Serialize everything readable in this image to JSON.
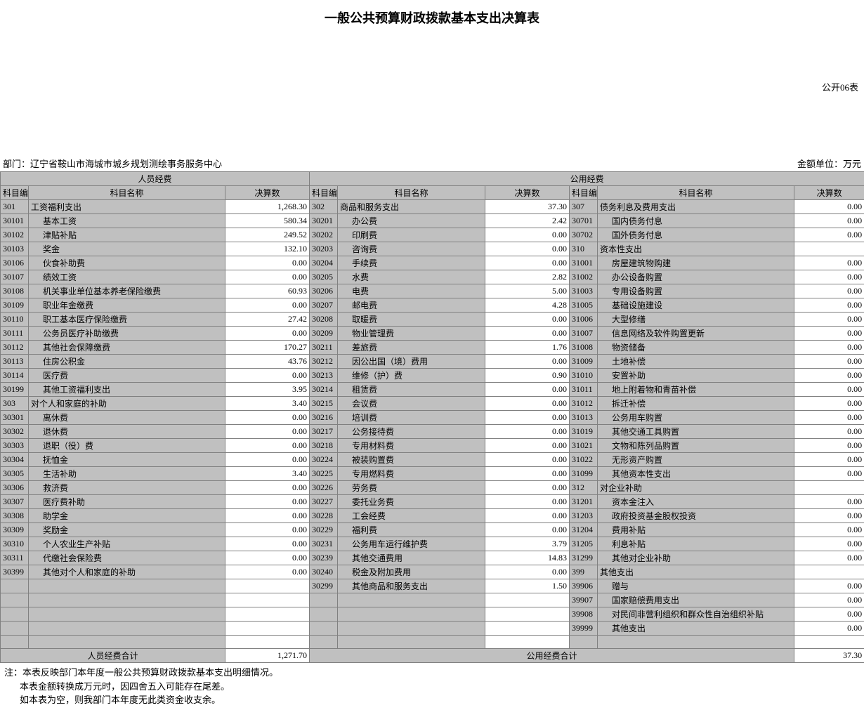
{
  "title": "一般公共预算财政拨款基本支出决算表",
  "pub_label": "公开06表",
  "dept_label": "部门：辽宁省鞍山市海城市城乡规划测绘事务服务中心",
  "unit_label": "金额单位：万元",
  "section_personnel": "人员经费",
  "section_public": "公用经费",
  "col_code": "科目编码",
  "col_name": "科目名称",
  "col_amount": "决算数",
  "total_personnel_label": "人员经费合计",
  "total_personnel_value": "1,271.70",
  "total_public_label": "公用经费合计",
  "total_public_value": "37.30",
  "notes": [
    "注：本表反映部门本年度一般公共预算财政拨款基本支出明细情况。",
    "本表金额转换成万元时，因四舍五入可能存在尾差。",
    "如本表为空，则我部门本年度无此类资金收支余。"
  ],
  "colA": [
    {
      "code": "301",
      "name": "工资福利支出",
      "amt": "1,268.30",
      "lvl": 0
    },
    {
      "code": "30101",
      "name": "基本工资",
      "amt": "580.34",
      "lvl": 1
    },
    {
      "code": "30102",
      "name": "津贴补贴",
      "amt": "249.52",
      "lvl": 1
    },
    {
      "code": "30103",
      "name": "奖金",
      "amt": "132.10",
      "lvl": 1
    },
    {
      "code": "30106",
      "name": "伙食补助费",
      "amt": "0.00",
      "lvl": 1
    },
    {
      "code": "30107",
      "name": "绩效工资",
      "amt": "0.00",
      "lvl": 1
    },
    {
      "code": "30108",
      "name": "机关事业单位基本养老保险缴费",
      "amt": "60.93",
      "lvl": 1
    },
    {
      "code": "30109",
      "name": "职业年金缴费",
      "amt": "0.00",
      "lvl": 1
    },
    {
      "code": "30110",
      "name": "职工基本医疗保险缴费",
      "amt": "27.42",
      "lvl": 1
    },
    {
      "code": "30111",
      "name": "公务员医疗补助缴费",
      "amt": "0.00",
      "lvl": 1
    },
    {
      "code": "30112",
      "name": "其他社会保障缴费",
      "amt": "170.27",
      "lvl": 1
    },
    {
      "code": "30113",
      "name": "住房公积金",
      "amt": "43.76",
      "lvl": 1
    },
    {
      "code": "30114",
      "name": "医疗费",
      "amt": "0.00",
      "lvl": 1
    },
    {
      "code": "30199",
      "name": "其他工资福利支出",
      "amt": "3.95",
      "lvl": 1
    },
    {
      "code": "303",
      "name": "对个人和家庭的补助",
      "amt": "3.40",
      "lvl": 0
    },
    {
      "code": "30301",
      "name": "离休费",
      "amt": "0.00",
      "lvl": 1
    },
    {
      "code": "30302",
      "name": "退休费",
      "amt": "0.00",
      "lvl": 1
    },
    {
      "code": "30303",
      "name": "退职（役）费",
      "amt": "0.00",
      "lvl": 1
    },
    {
      "code": "30304",
      "name": "抚恤金",
      "amt": "0.00",
      "lvl": 1
    },
    {
      "code": "30305",
      "name": "生活补助",
      "amt": "3.40",
      "lvl": 1
    },
    {
      "code": "30306",
      "name": "救济费",
      "amt": "0.00",
      "lvl": 1
    },
    {
      "code": "30307",
      "name": "医疗费补助",
      "amt": "0.00",
      "lvl": 1
    },
    {
      "code": "30308",
      "name": "助学金",
      "amt": "0.00",
      "lvl": 1
    },
    {
      "code": "30309",
      "name": "奖励金",
      "amt": "0.00",
      "lvl": 1
    },
    {
      "code": "30310",
      "name": "个人农业生产补贴",
      "amt": "0.00",
      "lvl": 1
    },
    {
      "code": "30311",
      "name": "代缴社会保险费",
      "amt": "0.00",
      "lvl": 1
    },
    {
      "code": "30399",
      "name": "其他对个人和家庭的补助",
      "amt": "0.00",
      "lvl": 1
    },
    {
      "code": "",
      "name": "",
      "amt": "",
      "lvl": 0
    },
    {
      "code": "",
      "name": "",
      "amt": "",
      "lvl": 0
    },
    {
      "code": "",
      "name": "",
      "amt": "",
      "lvl": 0
    },
    {
      "code": "",
      "name": "",
      "amt": "",
      "lvl": 0
    },
    {
      "code": "",
      "name": "",
      "amt": "",
      "lvl": 0
    }
  ],
  "colB": [
    {
      "code": "302",
      "name": "商品和服务支出",
      "amt": "37.30",
      "lvl": 0
    },
    {
      "code": "30201",
      "name": "办公费",
      "amt": "2.42",
      "lvl": 1
    },
    {
      "code": "30202",
      "name": "印刷费",
      "amt": "0.00",
      "lvl": 1
    },
    {
      "code": "30203",
      "name": "咨询费",
      "amt": "0.00",
      "lvl": 1
    },
    {
      "code": "30204",
      "name": "手续费",
      "amt": "0.00",
      "lvl": 1
    },
    {
      "code": "30205",
      "name": "水费",
      "amt": "2.82",
      "lvl": 1
    },
    {
      "code": "30206",
      "name": "电费",
      "amt": "5.00",
      "lvl": 1
    },
    {
      "code": "30207",
      "name": "邮电费",
      "amt": "4.28",
      "lvl": 1
    },
    {
      "code": "30208",
      "name": "取暖费",
      "amt": "0.00",
      "lvl": 1
    },
    {
      "code": "30209",
      "name": "物业管理费",
      "amt": "0.00",
      "lvl": 1
    },
    {
      "code": "30211",
      "name": "差旅费",
      "amt": "1.76",
      "lvl": 1
    },
    {
      "code": "30212",
      "name": "因公出国（境）费用",
      "amt": "0.00",
      "lvl": 1
    },
    {
      "code": "30213",
      "name": "维修（护）费",
      "amt": "0.90",
      "lvl": 1
    },
    {
      "code": "30214",
      "name": "租赁费",
      "amt": "0.00",
      "lvl": 1
    },
    {
      "code": "30215",
      "name": "会议费",
      "amt": "0.00",
      "lvl": 1
    },
    {
      "code": "30216",
      "name": "培训费",
      "amt": "0.00",
      "lvl": 1
    },
    {
      "code": "30217",
      "name": "公务接待费",
      "amt": "0.00",
      "lvl": 1
    },
    {
      "code": "30218",
      "name": "专用材料费",
      "amt": "0.00",
      "lvl": 1
    },
    {
      "code": "30224",
      "name": "被装购置费",
      "amt": "0.00",
      "lvl": 1
    },
    {
      "code": "30225",
      "name": "专用燃料费",
      "amt": "0.00",
      "lvl": 1
    },
    {
      "code": "30226",
      "name": "劳务费",
      "amt": "0.00",
      "lvl": 1
    },
    {
      "code": "30227",
      "name": "委托业务费",
      "amt": "0.00",
      "lvl": 1
    },
    {
      "code": "30228",
      "name": "工会经费",
      "amt": "0.00",
      "lvl": 1
    },
    {
      "code": "30229",
      "name": "福利费",
      "amt": "0.00",
      "lvl": 1
    },
    {
      "code": "30231",
      "name": "公务用车运行维护费",
      "amt": "3.79",
      "lvl": 1
    },
    {
      "code": "30239",
      "name": "其他交通费用",
      "amt": "14.83",
      "lvl": 1
    },
    {
      "code": "30240",
      "name": "税金及附加费用",
      "amt": "0.00",
      "lvl": 1
    },
    {
      "code": "30299",
      "name": "其他商品和服务支出",
      "amt": "1.50",
      "lvl": 1
    },
    {
      "code": "",
      "name": "",
      "amt": "",
      "lvl": 0
    },
    {
      "code": "",
      "name": "",
      "amt": "",
      "lvl": 0
    },
    {
      "code": "",
      "name": "",
      "amt": "",
      "lvl": 0
    },
    {
      "code": "",
      "name": "",
      "amt": "",
      "lvl": 0
    }
  ],
  "colC": [
    {
      "code": "307",
      "name": "债务利息及费用支出",
      "amt": "0.00",
      "lvl": 0
    },
    {
      "code": "30701",
      "name": "国内债务付息",
      "amt": "0.00",
      "lvl": 1
    },
    {
      "code": "30702",
      "name": "国外债务付息",
      "amt": "0.00",
      "lvl": 1
    },
    {
      "code": "310",
      "name": "资本性支出",
      "amt": "",
      "lvl": 0
    },
    {
      "code": "31001",
      "name": "房屋建筑物购建",
      "amt": "0.00",
      "lvl": 1
    },
    {
      "code": "31002",
      "name": "办公设备购置",
      "amt": "0.00",
      "lvl": 1
    },
    {
      "code": "31003",
      "name": "专用设备购置",
      "amt": "0.00",
      "lvl": 1
    },
    {
      "code": "31005",
      "name": "基础设施建设",
      "amt": "0.00",
      "lvl": 1
    },
    {
      "code": "31006",
      "name": "大型修缮",
      "amt": "0.00",
      "lvl": 1
    },
    {
      "code": "31007",
      "name": "信息网络及软件购置更新",
      "amt": "0.00",
      "lvl": 1
    },
    {
      "code": "31008",
      "name": "物资储备",
      "amt": "0.00",
      "lvl": 1
    },
    {
      "code": "31009",
      "name": "土地补偿",
      "amt": "0.00",
      "lvl": 1
    },
    {
      "code": "31010",
      "name": "安置补助",
      "amt": "0.00",
      "lvl": 1
    },
    {
      "code": "31011",
      "name": "地上附着物和青苗补偿",
      "amt": "0.00",
      "lvl": 1
    },
    {
      "code": "31012",
      "name": "拆迁补偿",
      "amt": "0.00",
      "lvl": 1
    },
    {
      "code": "31013",
      "name": "公务用车购置",
      "amt": "0.00",
      "lvl": 1
    },
    {
      "code": "31019",
      "name": "其他交通工具购置",
      "amt": "0.00",
      "lvl": 1
    },
    {
      "code": "31021",
      "name": "文物和陈列品购置",
      "amt": "0.00",
      "lvl": 1
    },
    {
      "code": "31022",
      "name": "无形资产购置",
      "amt": "0.00",
      "lvl": 1
    },
    {
      "code": "31099",
      "name": "其他资本性支出",
      "amt": "0.00",
      "lvl": 1
    },
    {
      "code": "312",
      "name": "对企业补助",
      "amt": "",
      "lvl": 0
    },
    {
      "code": "31201",
      "name": "资本金注入",
      "amt": "0.00",
      "lvl": 1
    },
    {
      "code": "31203",
      "name": "政府投资基金股权投资",
      "amt": "0.00",
      "lvl": 1
    },
    {
      "code": "31204",
      "name": "费用补贴",
      "amt": "0.00",
      "lvl": 1
    },
    {
      "code": "31205",
      "name": "利息补贴",
      "amt": "0.00",
      "lvl": 1
    },
    {
      "code": "31299",
      "name": "其他对企业补助",
      "amt": "0.00",
      "lvl": 1
    },
    {
      "code": "399",
      "name": "其他支出",
      "amt": "",
      "lvl": 0
    },
    {
      "code": "39906",
      "name": "赠与",
      "amt": "0.00",
      "lvl": 1
    },
    {
      "code": "39907",
      "name": "国家赔偿费用支出",
      "amt": "0.00",
      "lvl": 1
    },
    {
      "code": "39908",
      "name": "对民间非营利组织和群众性自治组织补贴",
      "amt": "0.00",
      "lvl": 1
    },
    {
      "code": "39999",
      "name": "其他支出",
      "amt": "0.00",
      "lvl": 1
    },
    {
      "code": "",
      "name": "",
      "amt": "",
      "lvl": 0
    }
  ],
  "col_widths": {
    "codeA": 40,
    "nameA": 280,
    "amtA": 120,
    "codeB": 40,
    "nameB": 210,
    "amtB": 120,
    "codeC": 40,
    "nameC": 280,
    "amtC": 100
  }
}
